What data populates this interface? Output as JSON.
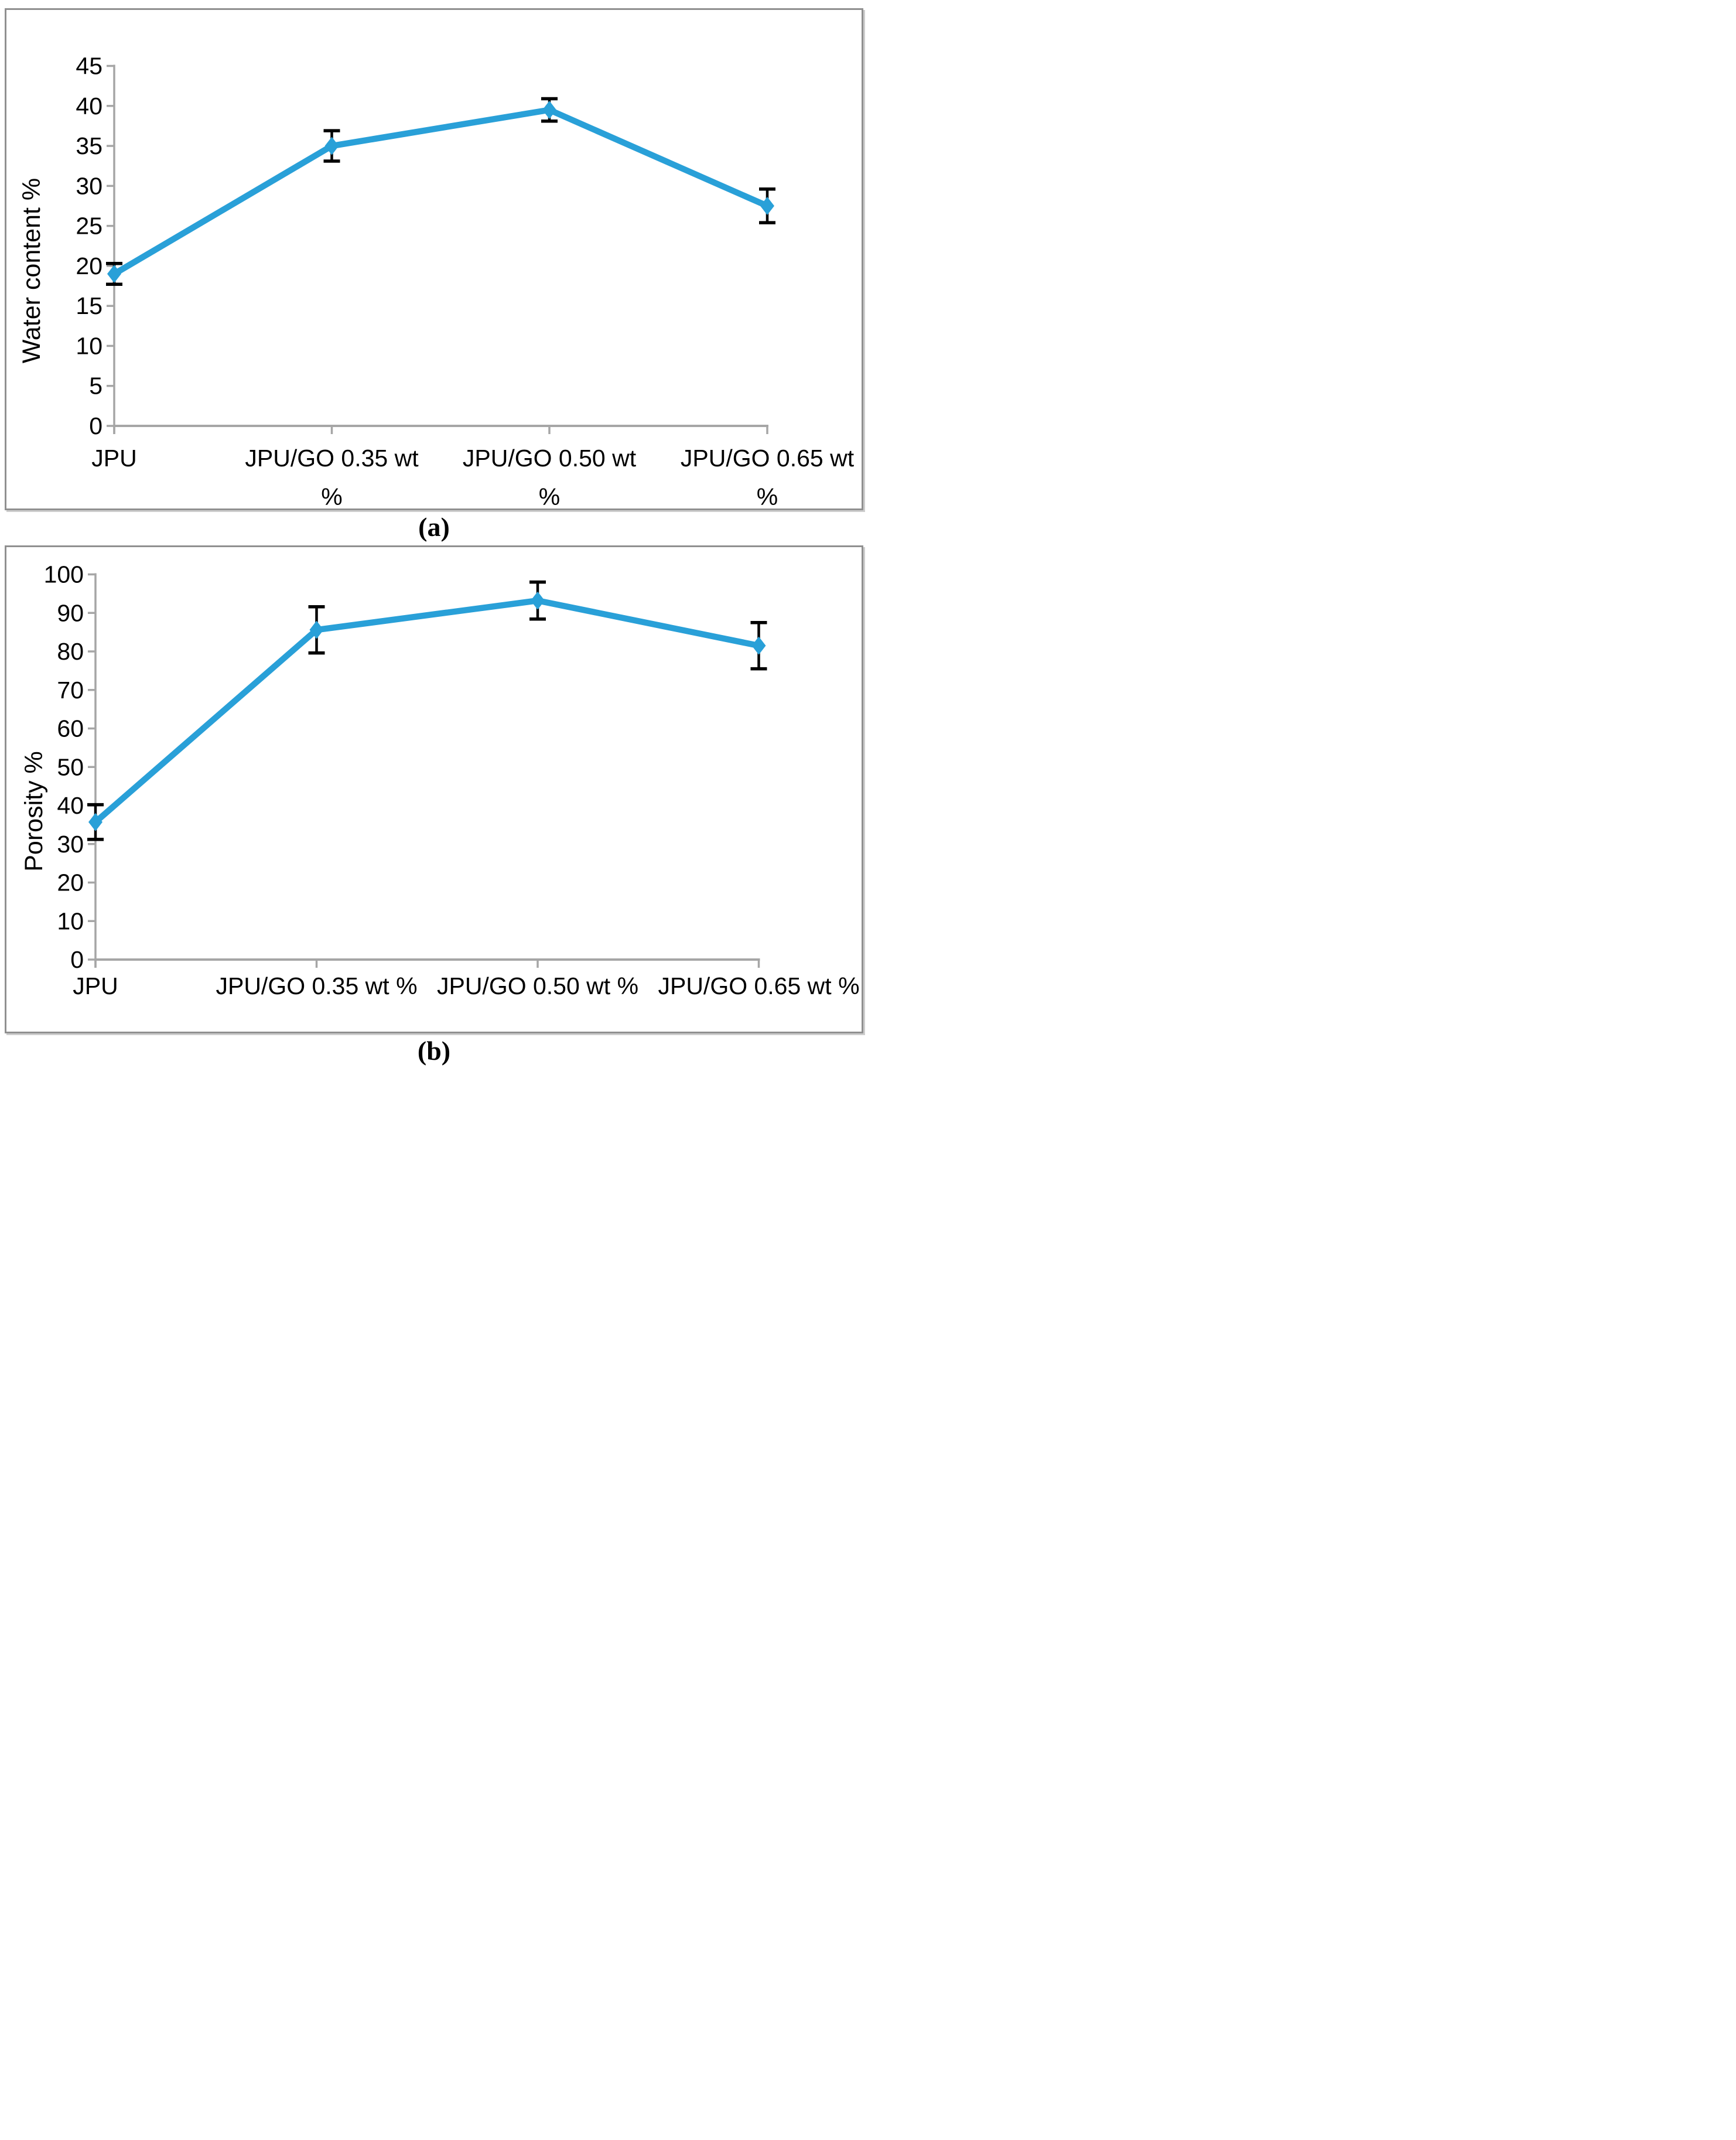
{
  "figure": {
    "captions": {
      "a": "(a)",
      "b": "(b)"
    },
    "colors": {
      "series": "#29A0D8",
      "axis": "#A6A6A6",
      "error_bar": "#000000",
      "text": "#000000",
      "panel_border": "#909090",
      "background": "#FFFFFF"
    }
  },
  "chart_data": [
    {
      "id": "a",
      "type": "line",
      "title": "",
      "xlabel": "",
      "ylabel": "Water content %",
      "categories": [
        "JPU",
        "JPU/GO 0.35 wt %",
        "JPU/GO 0.50 wt %",
        "JPU/GO 0.65 wt %"
      ],
      "category_label_lines": [
        [
          "JPU"
        ],
        [
          "JPU/GO 0.35 wt",
          "%"
        ],
        [
          "JPU/GO 0.50 wt",
          "%"
        ],
        [
          "JPU/GO 0.65 wt",
          "%"
        ]
      ],
      "values": [
        19,
        35,
        39.5,
        27.5
      ],
      "error_bars": [
        1.3,
        1.9,
        1.4,
        2.1
      ],
      "ylim": [
        0,
        45
      ],
      "ytick_step": 5,
      "ytick_labels": [
        "0",
        "5",
        "10",
        "15",
        "20",
        "25",
        "30",
        "35",
        "40",
        "45"
      ],
      "marker": "diamond",
      "grid": false,
      "legend_position": "none"
    },
    {
      "id": "b",
      "type": "line",
      "title": "",
      "xlabel": "",
      "ylabel": "Porosity %",
      "categories": [
        "JPU",
        "JPU/GO 0.35 wt %",
        "JPU/GO 0.50 wt %",
        "JPU/GO 0.65 wt %"
      ],
      "category_label_lines": [
        [
          "JPU"
        ],
        [
          "JPU/GO 0.35 wt %"
        ],
        [
          "JPU/GO 0.50 wt %"
        ],
        [
          "JPU/GO 0.65 wt %"
        ]
      ],
      "values": [
        35.7,
        85.6,
        93.2,
        81.5
      ],
      "error_bars": [
        4.5,
        6,
        4.8,
        6
      ],
      "ylim": [
        0,
        100
      ],
      "ytick_step": 10,
      "ytick_labels": [
        "0",
        "10",
        "20",
        "30",
        "40",
        "50",
        "60",
        "70",
        "80",
        "90",
        "100"
      ],
      "marker": "diamond",
      "grid": false,
      "legend_position": "none"
    }
  ]
}
